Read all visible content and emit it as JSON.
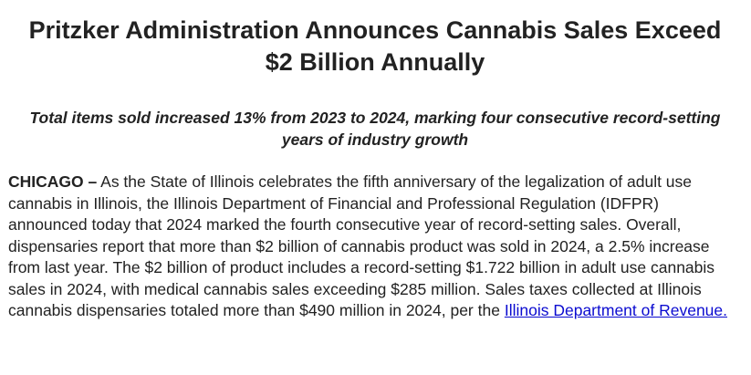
{
  "header": {
    "title": "Pritzker Administration Announces Cannabis Sales Exceed $2 Billion Annually",
    "subtitle": "Total items sold increased 13% from 2023 to 2024, marking four consecutive record-setting years of industry growth"
  },
  "body": {
    "dateline": "CHICAGO –",
    "text": "As the State of Illinois celebrates the fifth anniversary of the legalization of adult use cannabis in Illinois, the Illinois Department of Financial and Professional Regulation (IDFPR) announced today that 2024 marked the fourth consecutive year of record-setting sales. Overall, dispensaries report that more than $2 billion of cannabis product was sold in 2024, a 2.5% increase from last year. The $2 billion of product includes a record-setting $1.722 billion in adult use cannabis sales in 2024, with medical cannabis sales exceeding $285 million. Sales taxes collected at Illinois cannabis dispensaries totaled more than $490 million in 2024, per the",
    "link": "Illinois Department of Revenue."
  }
}
